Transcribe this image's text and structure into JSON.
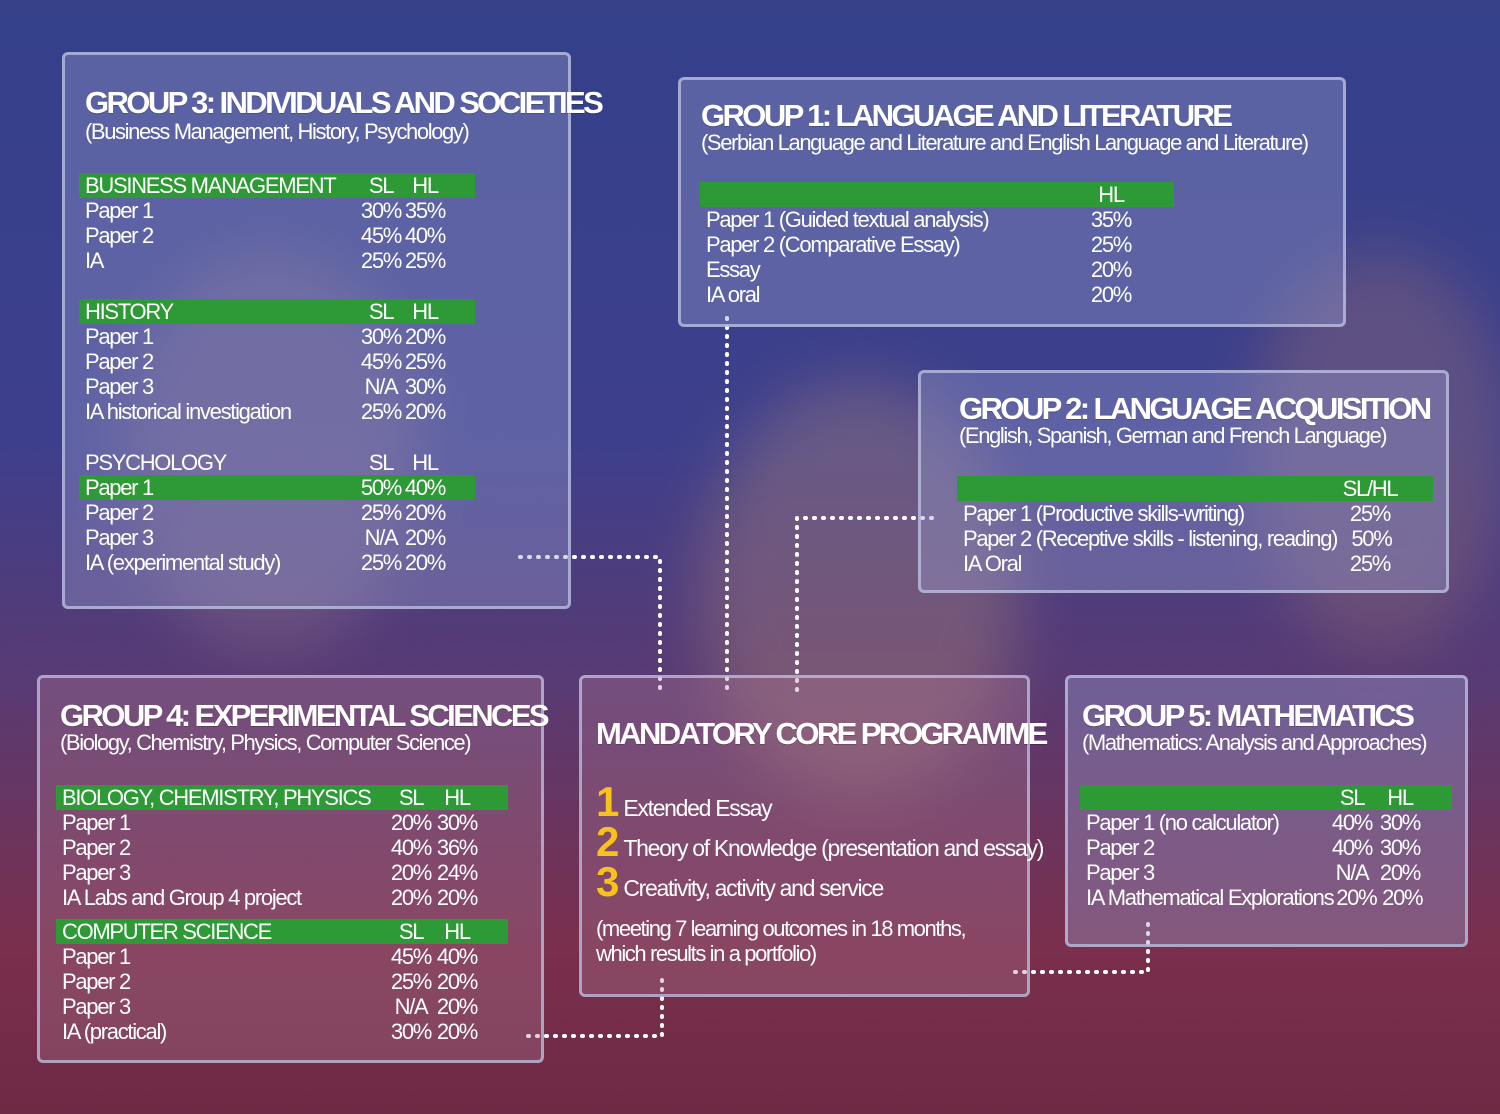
{
  "colors": {
    "green": "#2e9a36",
    "accent": "#f7c21a"
  },
  "group3": {
    "title": "GROUP 3: INDIVIDUALS AND SOCIETIES",
    "subtitle": "(Business Management, History, Psychology)",
    "sections": [
      {
        "name": "BUSINESS MANAGEMENT",
        "cols": [
          "SL",
          "HL"
        ],
        "rows": [
          [
            "Paper 1",
            "30%",
            "35%"
          ],
          [
            "Paper 2",
            "45%",
            "40%"
          ],
          [
            "IA",
            "25%",
            "25%"
          ]
        ]
      },
      {
        "name": "HISTORY",
        "cols": [
          "SL",
          "HL"
        ],
        "rows": [
          [
            "Paper 1",
            "30%",
            "20%"
          ],
          [
            "Paper 2",
            "45%",
            "25%"
          ],
          [
            "Paper 3",
            "N/A",
            "30%"
          ],
          [
            "IA historical investigation",
            "25%",
            "20%"
          ]
        ]
      },
      {
        "name": "PSYCHOLOGY",
        "cols": [
          "SL",
          "HL"
        ],
        "rows": [
          [
            "Paper 1",
            "50%",
            "40%"
          ],
          [
            "Paper 2",
            "25%",
            "20%"
          ],
          [
            "Paper 3",
            "N/A",
            "20%"
          ],
          [
            "IA (experimental study)",
            "25%",
            "20%"
          ]
        ]
      }
    ]
  },
  "group1": {
    "title": "GROUP 1: LANGUAGE AND LITERATURE",
    "subtitle": "(Serbian Language and Literature and English Language and Literature)",
    "sections": [
      {
        "name": "",
        "cols": [
          "HL"
        ],
        "rows": [
          [
            "Paper 1 (Guided textual analysis)",
            "35%"
          ],
          [
            "Paper 2 (Comparative Essay)",
            "25%"
          ],
          [
            "Essay",
            "20%"
          ],
          [
            "IA oral",
            "20%"
          ]
        ]
      }
    ]
  },
  "group2": {
    "title": "GROUP 2: LANGUAGE ACQUISITION",
    "subtitle": "(English, Spanish, German and French Language)",
    "sections": [
      {
        "name": "",
        "cols": [
          "SL/HL"
        ],
        "rows": [
          [
            "Paper 1 (Productive skills-writing)",
            "25%"
          ],
          [
            "Paper 2 (Receptive skills - listening, reading)",
            "50%"
          ],
          [
            "IA Oral",
            "25%"
          ]
        ]
      }
    ]
  },
  "group4": {
    "title": "GROUP 4: EXPERIMENTAL SCIENCES",
    "subtitle": "(Biology, Chemistry, Physics, Computer Science)",
    "sections": [
      {
        "name": "BIOLOGY, CHEMISTRY, PHYSICS",
        "cols": [
          "SL",
          "HL"
        ],
        "rows": [
          [
            "Paper 1",
            "20%",
            "30%"
          ],
          [
            "Paper 2",
            "40%",
            "36%"
          ],
          [
            "Paper 3",
            "20%",
            "24%"
          ],
          [
            "IA Labs and Group 4 project",
            "20%",
            "20%"
          ]
        ]
      },
      {
        "name": "COMPUTER SCIENCE",
        "cols": [
          "SL",
          "HL"
        ],
        "rows": [
          [
            "Paper 1",
            "45%",
            "40%"
          ],
          [
            "Paper 2",
            "25%",
            "20%"
          ],
          [
            "Paper 3",
            "N/A",
            "20%"
          ],
          [
            "IA (practical)",
            "30%",
            "20%"
          ]
        ]
      }
    ]
  },
  "group5": {
    "title": "GROUP 5: MATHEMATICS",
    "subtitle": "(Mathematics: Analysis and Approaches)",
    "sections": [
      {
        "name": "",
        "cols": [
          "SL",
          "HL"
        ],
        "rows": [
          [
            "Paper 1 (no calculator)",
            "40%",
            "30%"
          ],
          [
            "Paper 2",
            "40%",
            "30%"
          ],
          [
            "Paper 3",
            "N/A",
            "20%"
          ],
          [
            "IA Mathematical Explorations",
            "20%",
            "20%"
          ]
        ]
      }
    ]
  },
  "core": {
    "title": "MANDATORY CORE PROGRAMME",
    "items": [
      {
        "num": "1",
        "text": "Extended Essay"
      },
      {
        "num": "2",
        "text": "Theory of Knowledge (presentation and essay)"
      },
      {
        "num": "3",
        "text": "Creativity, activity and service"
      }
    ],
    "note1": "(meeting 7 learning outcomes in 18 months,",
    "note2": "which results in a portfolio)"
  }
}
